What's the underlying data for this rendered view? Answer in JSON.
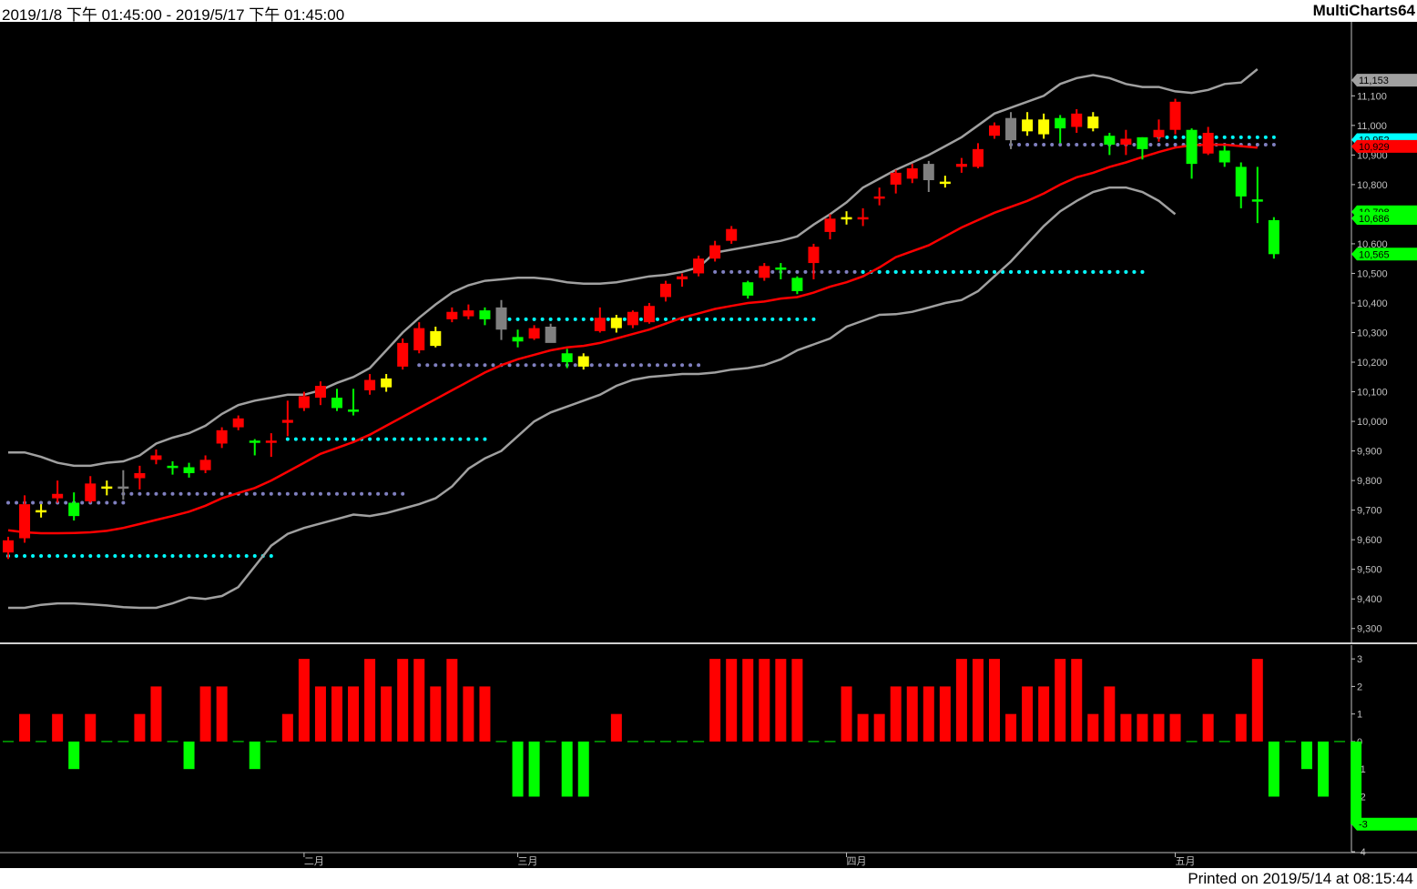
{
  "header": {
    "date_range": "2019/1/8 下午 01:45:00 - 2019/5/17 下午 01:45:00",
    "app_name": "MultiCharts64"
  },
  "footer": {
    "printed": "Printed on 2019/5/14 at 08:15:44"
  },
  "colors": {
    "background": "#000000",
    "bull": "#ff0000",
    "bear": "#00ff00",
    "neutral_yellow": "#ffff00",
    "neutral_gray": "#808080",
    "middle_band": "#ff0000",
    "outer_band": "#a0a0a0",
    "level_cyan": "#00ffff",
    "level_slate": "#8080c0",
    "axis_text": "#c0c0c0"
  },
  "chart_data": [
    {
      "type": "candlestick",
      "name": "price",
      "ylim": [
        9250,
        11350
      ],
      "y_ticks": [
        9300,
        9400,
        9500,
        9600,
        9700,
        9800,
        9900,
        10000,
        10100,
        10200,
        10300,
        10400,
        10500,
        10600,
        10800,
        10900,
        11000,
        11100
      ],
      "x_month_labels": [
        {
          "label": "二月",
          "bar": 18
        },
        {
          "label": "三月",
          "bar": 31
        },
        {
          "label": "四月",
          "bar": 51
        },
        {
          "label": "五月",
          "bar": 71
        }
      ],
      "candles": [
        {
          "o": 9557,
          "h": 9610,
          "l": 9535,
          "c": 9598,
          "k": "r"
        },
        {
          "o": 9605,
          "h": 9750,
          "l": 9590,
          "c": 9720,
          "k": "r"
        },
        {
          "o": 9700,
          "h": 9720,
          "l": 9675,
          "c": 9700,
          "k": "y"
        },
        {
          "o": 9740,
          "h": 9800,
          "l": 9725,
          "c": 9755,
          "k": "r"
        },
        {
          "o": 9725,
          "h": 9760,
          "l": 9665,
          "c": 9680,
          "k": "g"
        },
        {
          "o": 9730,
          "h": 9815,
          "l": 9725,
          "c": 9790,
          "k": "r"
        },
        {
          "o": 9780,
          "h": 9800,
          "l": 9750,
          "c": 9780,
          "k": "y"
        },
        {
          "o": 9780,
          "h": 9835,
          "l": 9735,
          "c": 9778,
          "k": "n"
        },
        {
          "o": 9808,
          "h": 9850,
          "l": 9770,
          "c": 9825,
          "k": "r"
        },
        {
          "o": 9870,
          "h": 9905,
          "l": 9855,
          "c": 9885,
          "k": "r"
        },
        {
          "o": 9850,
          "h": 9865,
          "l": 9820,
          "c": 9845,
          "k": "g"
        },
        {
          "o": 9845,
          "h": 9860,
          "l": 9810,
          "c": 9825,
          "k": "g"
        },
        {
          "o": 9835,
          "h": 9885,
          "l": 9825,
          "c": 9870,
          "k": "r"
        },
        {
          "o": 9925,
          "h": 9980,
          "l": 9910,
          "c": 9970,
          "k": "r"
        },
        {
          "o": 9980,
          "h": 10020,
          "l": 9970,
          "c": 10010,
          "k": "r"
        },
        {
          "o": 9935,
          "h": 9940,
          "l": 9885,
          "c": 9935,
          "k": "g"
        },
        {
          "o": 9935,
          "h": 9960,
          "l": 9880,
          "c": 9935,
          "k": "r"
        },
        {
          "o": 9995,
          "h": 10070,
          "l": 9950,
          "c": 10005,
          "k": "r"
        },
        {
          "o": 10045,
          "h": 10100,
          "l": 10035,
          "c": 10085,
          "k": "r"
        },
        {
          "o": 10080,
          "h": 10135,
          "l": 10055,
          "c": 10120,
          "k": "r"
        },
        {
          "o": 10080,
          "h": 10110,
          "l": 10035,
          "c": 10045,
          "k": "g"
        },
        {
          "o": 10040,
          "h": 10110,
          "l": 10020,
          "c": 10035,
          "k": "g"
        },
        {
          "o": 10105,
          "h": 10160,
          "l": 10090,
          "c": 10140,
          "k": "r"
        },
        {
          "o": 10115,
          "h": 10160,
          "l": 10100,
          "c": 10145,
          "k": "y"
        },
        {
          "o": 10185,
          "h": 10280,
          "l": 10175,
          "c": 10265,
          "k": "r"
        },
        {
          "o": 10240,
          "h": 10335,
          "l": 10230,
          "c": 10315,
          "k": "r"
        },
        {
          "o": 10305,
          "h": 10320,
          "l": 10250,
          "c": 10255,
          "k": "y"
        },
        {
          "o": 10345,
          "h": 10385,
          "l": 10335,
          "c": 10370,
          "k": "r"
        },
        {
          "o": 10355,
          "h": 10395,
          "l": 10345,
          "c": 10375,
          "k": "r"
        },
        {
          "o": 10375,
          "h": 10385,
          "l": 10325,
          "c": 10345,
          "k": "g"
        },
        {
          "o": 10385,
          "h": 10410,
          "l": 10275,
          "c": 10310,
          "k": "n"
        },
        {
          "o": 10285,
          "h": 10310,
          "l": 10250,
          "c": 10270,
          "k": "g"
        },
        {
          "o": 10280,
          "h": 10325,
          "l": 10275,
          "c": 10315,
          "k": "r"
        },
        {
          "o": 10320,
          "h": 10330,
          "l": 10270,
          "c": 10265,
          "k": "n"
        },
        {
          "o": 10230,
          "h": 10245,
          "l": 10180,
          "c": 10200,
          "k": "g"
        },
        {
          "o": 10185,
          "h": 10230,
          "l": 10175,
          "c": 10220,
          "k": "y"
        },
        {
          "o": 10305,
          "h": 10385,
          "l": 10300,
          "c": 10350,
          "k": "r"
        },
        {
          "o": 10350,
          "h": 10360,
          "l": 10300,
          "c": 10315,
          "k": "y"
        },
        {
          "o": 10325,
          "h": 10375,
          "l": 10315,
          "c": 10370,
          "k": "r"
        },
        {
          "o": 10335,
          "h": 10400,
          "l": 10330,
          "c": 10390,
          "k": "r"
        },
        {
          "o": 10420,
          "h": 10475,
          "l": 10405,
          "c": 10465,
          "k": "r"
        },
        {
          "o": 10480,
          "h": 10500,
          "l": 10455,
          "c": 10490,
          "k": "r"
        },
        {
          "o": 10500,
          "h": 10560,
          "l": 10490,
          "c": 10550,
          "k": "r"
        },
        {
          "o": 10550,
          "h": 10610,
          "l": 10540,
          "c": 10595,
          "k": "r"
        },
        {
          "o": 10610,
          "h": 10660,
          "l": 10600,
          "c": 10650,
          "k": "r"
        },
        {
          "o": 10470,
          "h": 10475,
          "l": 10415,
          "c": 10425,
          "k": "g"
        },
        {
          "o": 10485,
          "h": 10535,
          "l": 10475,
          "c": 10525,
          "k": "r"
        },
        {
          "o": 10520,
          "h": 10535,
          "l": 10480,
          "c": 10520,
          "k": "g"
        },
        {
          "o": 10485,
          "h": 10490,
          "l": 10430,
          "c": 10440,
          "k": "g"
        },
        {
          "o": 10535,
          "h": 10600,
          "l": 10480,
          "c": 10590,
          "k": "r"
        },
        {
          "o": 10640,
          "h": 10700,
          "l": 10615,
          "c": 10685,
          "k": "r"
        },
        {
          "o": 10690,
          "h": 10710,
          "l": 10665,
          "c": 10690,
          "k": "y"
        },
        {
          "o": 10690,
          "h": 10720,
          "l": 10660,
          "c": 10690,
          "k": "r"
        },
        {
          "o": 10755,
          "h": 10790,
          "l": 10730,
          "c": 10760,
          "k": "r"
        },
        {
          "o": 10800,
          "h": 10850,
          "l": 10770,
          "c": 10840,
          "k": "r"
        },
        {
          "o": 10820,
          "h": 10870,
          "l": 10805,
          "c": 10855,
          "k": "r"
        },
        {
          "o": 10870,
          "h": 10880,
          "l": 10775,
          "c": 10815,
          "k": "n"
        },
        {
          "o": 10810,
          "h": 10830,
          "l": 10790,
          "c": 10810,
          "k": "y"
        },
        {
          "o": 10860,
          "h": 10890,
          "l": 10840,
          "c": 10870,
          "k": "r"
        },
        {
          "o": 10860,
          "h": 10940,
          "l": 10855,
          "c": 10920,
          "k": "r"
        },
        {
          "o": 10965,
          "h": 11010,
          "l": 10955,
          "c": 11000,
          "k": "r"
        },
        {
          "o": 11025,
          "h": 11045,
          "l": 10920,
          "c": 10950,
          "k": "n"
        },
        {
          "o": 11020,
          "h": 11045,
          "l": 10965,
          "c": 10980,
          "k": "y"
        },
        {
          "o": 11020,
          "h": 11040,
          "l": 10955,
          "c": 10970,
          "k": "y"
        },
        {
          "o": 11025,
          "h": 11035,
          "l": 10940,
          "c": 10990,
          "k": "g"
        },
        {
          "o": 10995,
          "h": 11055,
          "l": 10975,
          "c": 11040,
          "k": "r"
        },
        {
          "o": 11030,
          "h": 11045,
          "l": 10980,
          "c": 10990,
          "k": "y"
        },
        {
          "o": 10965,
          "h": 10975,
          "l": 10900,
          "c": 10935,
          "k": "g"
        },
        {
          "o": 10935,
          "h": 10985,
          "l": 10900,
          "c": 10955,
          "k": "r"
        },
        {
          "o": 10960,
          "h": 10960,
          "l": 10885,
          "c": 10920,
          "k": "g"
        },
        {
          "o": 10960,
          "h": 11020,
          "l": 10945,
          "c": 10985,
          "k": "r"
        },
        {
          "o": 10985,
          "h": 11090,
          "l": 10970,
          "c": 11080,
          "k": "r"
        },
        {
          "o": 10985,
          "h": 10990,
          "l": 10820,
          "c": 10870,
          "k": "g"
        },
        {
          "o": 10905,
          "h": 10995,
          "l": 10900,
          "c": 10975,
          "k": "r"
        },
        {
          "o": 10915,
          "h": 10930,
          "l": 10860,
          "c": 10875,
          "k": "g"
        },
        {
          "o": 10860,
          "h": 10875,
          "l": 10720,
          "c": 10760,
          "k": "g"
        },
        {
          "o": 10750,
          "h": 10860,
          "l": 10670,
          "c": 10750,
          "k": "g"
        },
        {
          "o": 10680,
          "h": 10690,
          "l": 10550,
          "c": 10565,
          "k": "g"
        }
      ],
      "upper_band": [
        9895,
        9895,
        9880,
        9860,
        9850,
        9850,
        9860,
        9865,
        9885,
        9925,
        9945,
        9960,
        9985,
        10025,
        10055,
        10070,
        10080,
        10090,
        10090,
        10105,
        10130,
        10150,
        10180,
        10240,
        10300,
        10350,
        10395,
        10435,
        10460,
        10475,
        10480,
        10485,
        10485,
        10480,
        10470,
        10465,
        10465,
        10470,
        10480,
        10490,
        10495,
        10505,
        10520,
        10570,
        10580,
        10590,
        10600,
        10610,
        10625,
        10665,
        10700,
        10740,
        10790,
        10820,
        10850,
        10875,
        10900,
        10930,
        10960,
        11000,
        11040,
        11060,
        11080,
        11100,
        11140,
        11160,
        11170,
        11160,
        11140,
        11130,
        11130,
        11115,
        11110,
        11120,
        11140,
        11145,
        11190
      ],
      "middle_band": [
        9632,
        9625,
        9622,
        9622,
        9623,
        9625,
        9630,
        9640,
        9653,
        9667,
        9680,
        9695,
        9715,
        9740,
        9758,
        9775,
        9800,
        9830,
        9860,
        9890,
        9910,
        9930,
        9955,
        9985,
        10015,
        10045,
        10075,
        10105,
        10135,
        10165,
        10190,
        10210,
        10225,
        10240,
        10250,
        10255,
        10265,
        10280,
        10295,
        10310,
        10330,
        10350,
        10365,
        10380,
        10390,
        10400,
        10405,
        10415,
        10420,
        10435,
        10455,
        10470,
        10490,
        10520,
        10555,
        10575,
        10595,
        10625,
        10655,
        10680,
        10705,
        10725,
        10745,
        10770,
        10800,
        10825,
        10840,
        10860,
        10875,
        10893,
        10910,
        10925,
        10933,
        10935,
        10935,
        10930,
        10925
      ],
      "lower_band": [
        9370,
        9370,
        9380,
        9385,
        9385,
        9382,
        9378,
        9372,
        9370,
        9370,
        9385,
        9405,
        9400,
        9410,
        9440,
        9510,
        9580,
        9620,
        9640,
        9655,
        9670,
        9685,
        9680,
        9690,
        9705,
        9720,
        9740,
        9780,
        9840,
        9875,
        9900,
        9950,
        10000,
        10030,
        10050,
        10070,
        10090,
        10120,
        10140,
        10150,
        10155,
        10160,
        10160,
        10165,
        10175,
        10180,
        10190,
        10210,
        10240,
        10260,
        10280,
        10320,
        10340,
        10360,
        10362,
        10370,
        10385,
        10400,
        10410,
        10440,
        10490,
        10540,
        10600,
        10660,
        10710,
        10745,
        10775,
        10790,
        10790,
        10775,
        10745,
        10700
      ],
      "levels": [
        {
          "price": 9545,
          "from": 0,
          "to": 16,
          "color": "cyan"
        },
        {
          "price": 9725,
          "from": 0,
          "to": 7,
          "color": "slate"
        },
        {
          "price": 9755,
          "from": 7,
          "to": 24,
          "color": "slate"
        },
        {
          "price": 9940,
          "from": 17,
          "to": 29,
          "color": "cyan"
        },
        {
          "price": 10190,
          "from": 25,
          "to": 42,
          "color": "slate"
        },
        {
          "price": 10345,
          "from": 30,
          "to": 49,
          "color": "cyan"
        },
        {
          "price": 10505,
          "from": 43,
          "to": 69,
          "color": "slate"
        },
        {
          "price": 10505,
          "from": 52,
          "to": 69,
          "color": "cyan"
        },
        {
          "price": 10935,
          "from": 61,
          "to": 77,
          "color": "slate"
        },
        {
          "price": 10960,
          "from": 70,
          "to": 77,
          "color": "cyan"
        }
      ],
      "value_tags": [
        {
          "text": "11,153",
          "price": 11153,
          "bg": "#a0a0a0",
          "fg": "#000000"
        },
        {
          "text": "10,952",
          "price": 10952,
          "bg": "#00ffff",
          "fg": "#000000"
        },
        {
          "text": "10,929",
          "price": 10929,
          "bg": "#ff0000",
          "fg": "#000000"
        },
        {
          "text": "10,708",
          "price": 10708,
          "bg": "#00ff00",
          "fg": "#000000"
        },
        {
          "text": "10,686",
          "price": 10686,
          "bg": "#00ff00",
          "fg": "#000000"
        },
        {
          "text": "10,565",
          "price": 10565,
          "bg": "#00ff00",
          "fg": "#000000"
        }
      ]
    },
    {
      "type": "bar",
      "name": "histogram",
      "ylim": [
        -4,
        3.5
      ],
      "y_ticks": [
        3,
        2,
        1,
        0,
        -1,
        -2,
        -4
      ],
      "values": [
        0,
        1,
        0,
        1,
        -1,
        1,
        0,
        0,
        1,
        2,
        0,
        -1,
        2,
        2,
        0,
        -1,
        0,
        1,
        3,
        2,
        2,
        2,
        3,
        2,
        3,
        3,
        2,
        3,
        2,
        2,
        0,
        -2,
        -2,
        0,
        -2,
        -2,
        0,
        1,
        0,
        0,
        0,
        0,
        0,
        3,
        3,
        3,
        3,
        3,
        3,
        0,
        0,
        2,
        1,
        1,
        2,
        2,
        2,
        2,
        3,
        3,
        3,
        1,
        2,
        2,
        3,
        3,
        1,
        2,
        1,
        1,
        1,
        1,
        0,
        1,
        0,
        1,
        3,
        -2,
        0,
        -1,
        -2,
        0,
        -3
      ],
      "value_tags": [
        {
          "text": "-3",
          "value": -3,
          "bg": "#00ff00",
          "fg": "#000000"
        }
      ]
    }
  ]
}
